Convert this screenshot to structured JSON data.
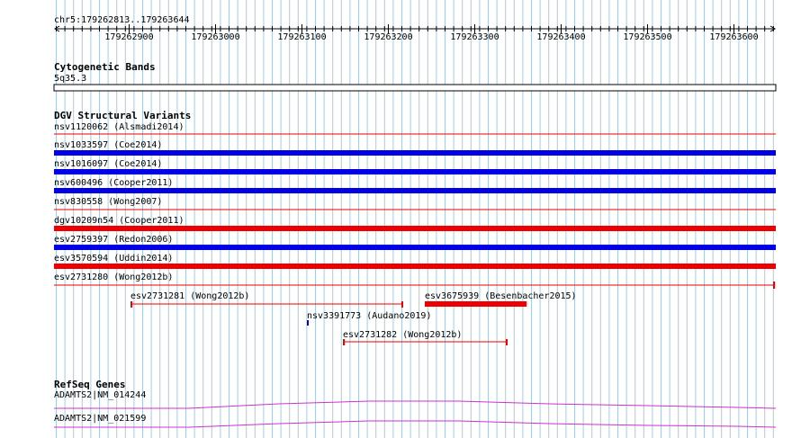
{
  "ruler": {
    "location": "chr5:179262813..179263644",
    "ticks": [
      "179262900",
      "179263000",
      "179263100",
      "179263200",
      "179263300",
      "179263400",
      "179263500",
      "179263600"
    ]
  },
  "cytoband": {
    "title": "Cytogenetic Bands",
    "band": "5q35.3"
  },
  "dgv": {
    "title": "DGV Structural Variants",
    "tracks": [
      {
        "label": "nsv1120062 (Alsmadi2014)",
        "type": "loss"
      },
      {
        "label": "nsv1033597 (Coe2014)",
        "type": "gain"
      },
      {
        "label": "nsv1016097 (Coe2014)",
        "type": "gain"
      },
      {
        "label": "nsv600496 (Cooper2011)",
        "type": "gain"
      },
      {
        "label": "nsv830558 (Wong2007)",
        "type": "loss"
      },
      {
        "label": "dgv10209n54 (Cooper2011)",
        "type": "loss"
      },
      {
        "label": "esv2759397 (Redon2006)",
        "type": "gain"
      },
      {
        "label": "esv3570594 (Uddin2014)",
        "type": "loss"
      },
      {
        "label": "esv2731280 (Wong2012b)",
        "type": "loss"
      }
    ],
    "small": [
      {
        "label": "esv2731281 (Wong2012b)"
      },
      {
        "label": "esv3675939 (Besenbacher2015)"
      },
      {
        "label": "nsv3391773 (Audano2019)"
      },
      {
        "label": "esv2731282 (Wong2012b)"
      }
    ]
  },
  "refseq": {
    "title": "RefSeq Genes",
    "genes": [
      {
        "label": "ADAMTS2|NM_014244"
      },
      {
        "label": "ADAMTS2|NM_021599"
      }
    ]
  },
  "colors": {
    "gain": "#0000e6",
    "loss": "#ee0000",
    "grid": "#a6cddd",
    "gene": "#cc33cc"
  }
}
